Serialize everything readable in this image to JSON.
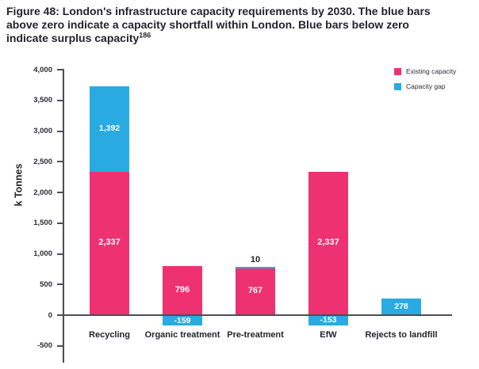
{
  "figure": {
    "title": {
      "lines": [
        "Figure 48: London's infrastructure capacity requirements by 2030. The blue bars",
        "above zero indicate a capacity shortfall within London. Blue bars below zero",
        "indicate surplus capacity"
      ],
      "superscript": "186"
    }
  },
  "chart_data": {
    "type": "bar",
    "stacked": true,
    "title": "",
    "xlabel": "",
    "ylabel": "k Tonnes",
    "ylim": [
      -500,
      4000
    ],
    "ytick_step": 500,
    "grid": false,
    "legend_position": "top-right",
    "yticks": [
      {
        "value": 4000,
        "label": "4,000"
      },
      {
        "value": 3500,
        "label": "3,500"
      },
      {
        "value": 3000,
        "label": "3,000"
      },
      {
        "value": 2500,
        "label": "2,500"
      },
      {
        "value": 2000,
        "label": "2,000"
      },
      {
        "value": 1500,
        "label": "1,500"
      },
      {
        "value": 1000,
        "label": "1,000"
      },
      {
        "value": 500,
        "label": "500"
      },
      {
        "value": 0,
        "label": "0"
      },
      {
        "value": -500,
        "label": "-500"
      }
    ],
    "categories": [
      "Recycling",
      "Organic treatment",
      "Pre-treatment",
      "EfW",
      "Rejects to landfill"
    ],
    "series": [
      {
        "name": "Existing capacity",
        "color": "#ee3271",
        "values": [
          2337,
          796,
          767,
          2337,
          0
        ],
        "labels": [
          "2,337",
          "796",
          "767",
          "2,337",
          ""
        ]
      },
      {
        "name": "Capacity gap",
        "color": "#29abe2",
        "values": [
          1392,
          -159,
          10,
          -153,
          278
        ],
        "labels": [
          "1,392",
          "-159",
          "10",
          "-153",
          "278"
        ]
      }
    ]
  }
}
